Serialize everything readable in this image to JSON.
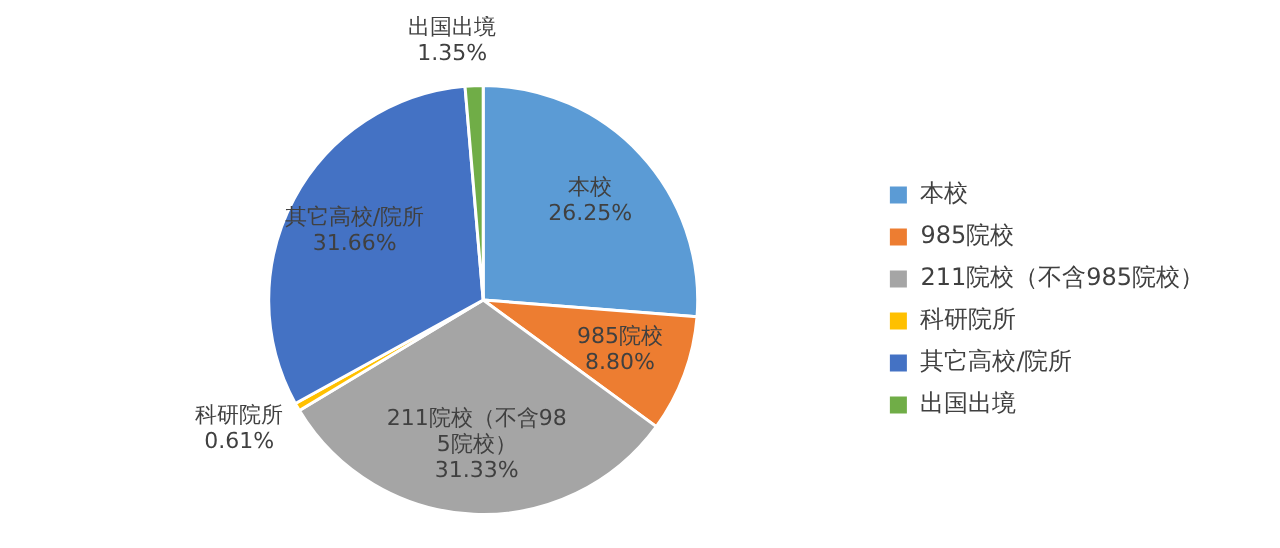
{
  "chart_data": {
    "type": "pie",
    "categories": [
      "本校",
      "985院校",
      "211院校（不含985院校）",
      "科研院所",
      "其它高校/院所",
      "出国出境"
    ],
    "values": [
      26.25,
      8.8,
      31.33,
      0.61,
      31.66,
      1.35
    ],
    "value_labels": [
      "26.25%",
      "8.80%",
      "31.33%",
      "0.61%",
      "31.66%",
      "1.35%"
    ],
    "colors": [
      "#5b9bd5",
      "#ed7d31",
      "#a5a5a5",
      "#ffc000",
      "#4472c4",
      "#70ad47"
    ],
    "legend": "right"
  }
}
